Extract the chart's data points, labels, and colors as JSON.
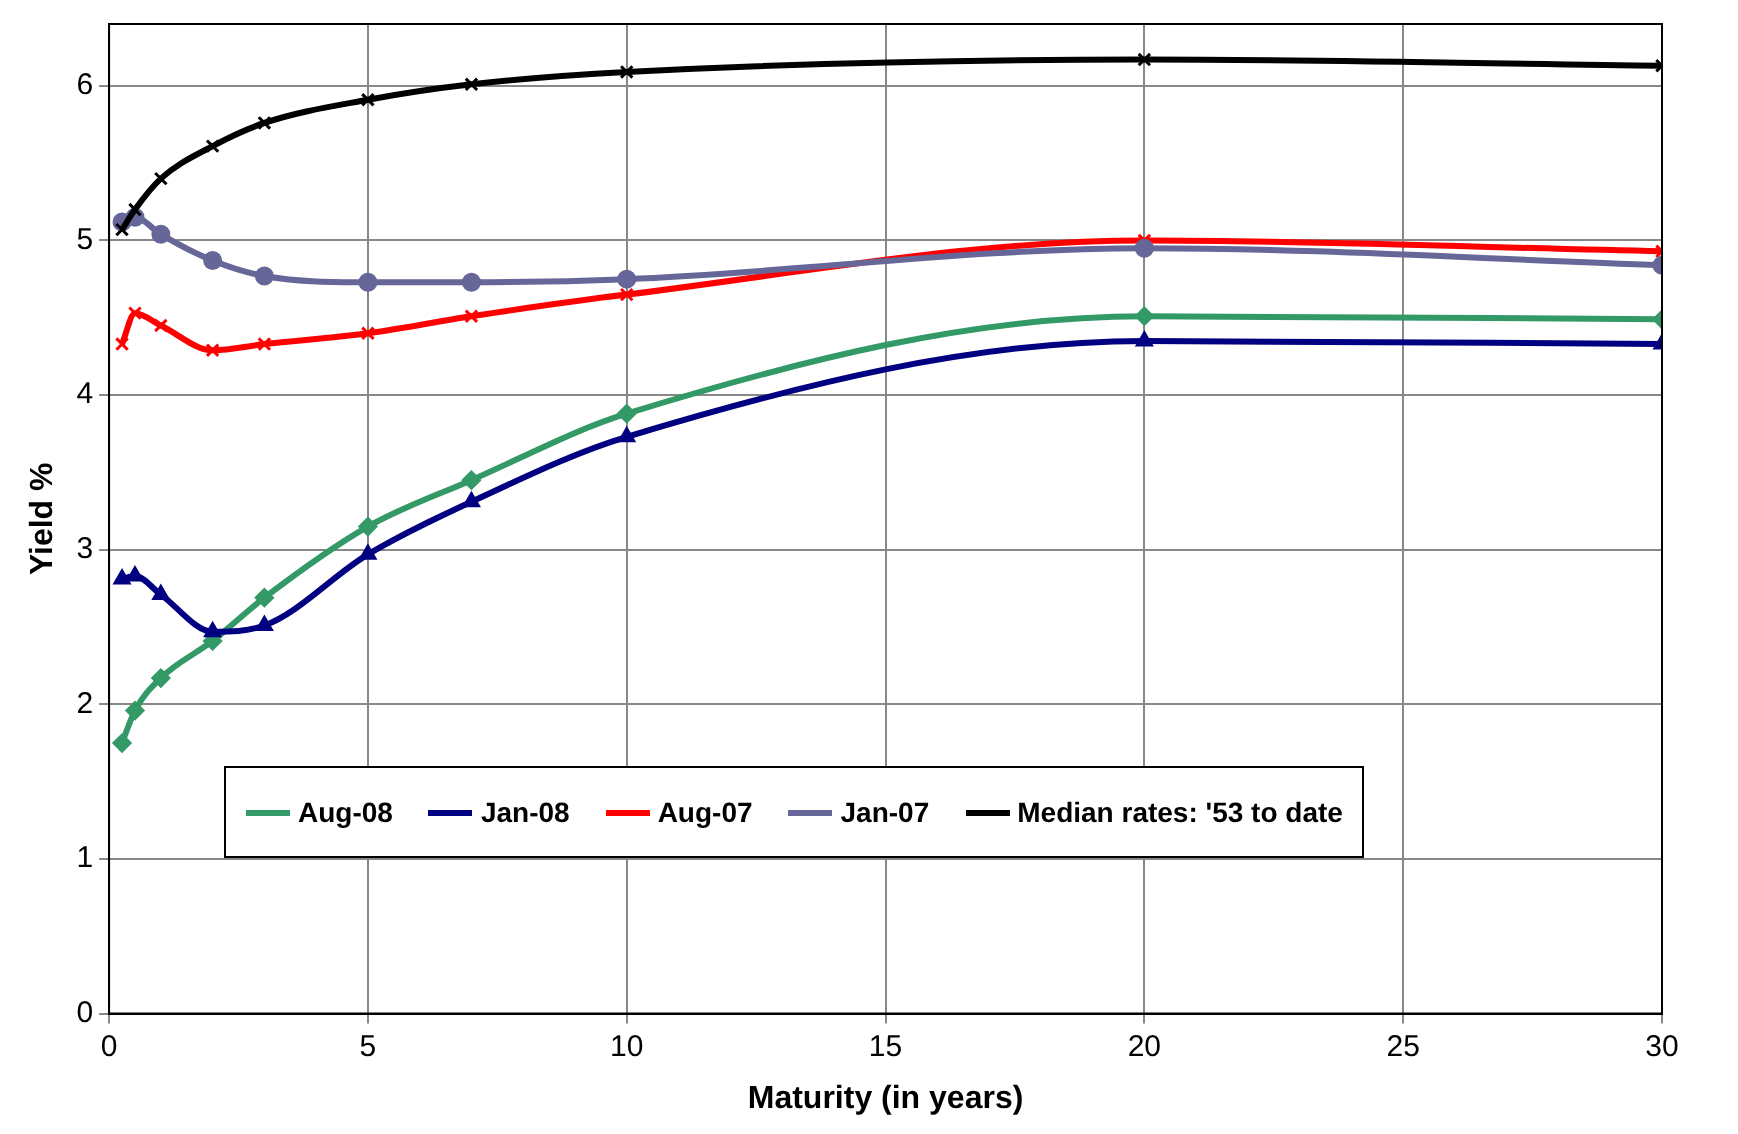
{
  "chart_data": {
    "type": "line",
    "xlabel": "Maturity (in years)",
    "ylabel": "Yield %",
    "x": [
      0.25,
      0.5,
      1,
      2,
      3,
      5,
      7,
      10,
      20,
      30
    ],
    "xlim": [
      0,
      30
    ],
    "xticks": [
      0,
      5,
      10,
      15,
      20,
      25,
      30
    ],
    "ylim": [
      0,
      6.4
    ],
    "yticks": [
      0,
      1,
      2,
      3,
      4,
      5,
      6
    ],
    "grid": true,
    "legend": "bottom",
    "series": [
      {
        "name": "Aug-08",
        "color": "#339966",
        "marker": "diamond",
        "values": [
          1.75,
          1.96,
          2.17,
          2.41,
          2.69,
          3.15,
          3.45,
          3.88,
          4.51,
          4.49
        ]
      },
      {
        "name": "Jan-08",
        "color": "#000080",
        "marker": "triangle",
        "values": [
          2.81,
          2.83,
          2.71,
          2.47,
          2.51,
          2.97,
          3.31,
          3.73,
          4.35,
          4.33
        ]
      },
      {
        "name": "Aug-07",
        "color": "#ff0000",
        "marker": "cross",
        "values": [
          4.33,
          4.53,
          4.45,
          4.29,
          4.33,
          4.4,
          4.51,
          4.65,
          5.0,
          4.93
        ]
      },
      {
        "name": "Jan-07",
        "color": "#666699",
        "marker": "circle",
        "values": [
          5.12,
          5.15,
          5.04,
          4.87,
          4.77,
          4.73,
          4.73,
          4.75,
          4.95,
          4.84
        ]
      },
      {
        "name": "Median rates: '53 to date",
        "color": "#000000",
        "marker": "cross",
        "values": [
          5.07,
          5.2,
          5.4,
          5.61,
          5.76,
          5.91,
          6.01,
          6.09,
          6.17,
          6.13
        ]
      }
    ]
  }
}
